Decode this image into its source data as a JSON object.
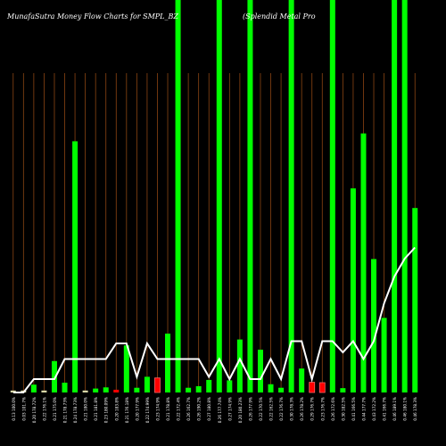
{
  "header": {
    "title_left": "MunafaSutra  Money Flow  Charts for SMPL_BZ",
    "title_right": "(Splendid Metal Pro"
  },
  "colors": {
    "background": "#000000",
    "grid_line": "#8B4513",
    "bar_up": "#00ff00",
    "bar_down": "#ff0000",
    "bar_neutral": "#d8d8a8",
    "line": "#ffffff",
    "label_text": "#ffffff"
  },
  "chart_data": {
    "type": "bar",
    "title": "MunafaSutra  Money Flow  Charts for SMPL_BZ",
    "grid": "vertical",
    "ylim": [
      0,
      100
    ],
    "line_ylim": [
      0,
      100
    ],
    "categories": [
      "0.13 100.0%",
      "0.03 101.7%",
      "0.20 178.72%",
      "0.22 176.1%",
      "0.21 175.0%",
      "0.21 178.73%",
      "0.24 178.73%",
      "0.21 180.0%",
      "0.21 181.8%",
      "0.23 180.09%",
      "0.20 183.8%",
      "0.21 176.18%",
      "0.20 177.9%",
      "0.22 174.99%",
      "0.23 174.9%",
      "0.21 178.8%",
      "0.22 172.4%",
      "0.26 162.7%",
      "0.26 190.2%",
      "0.27 180.8%",
      "0.26 177.74%",
      "0.27 174.9%",
      "0.20 180.23%",
      "0.26 177.9%",
      "0.22 170.5%",
      "0.22 162.5%",
      "0.22 176.7%",
      "0.30 178.3%",
      "0.26 178.2%",
      "0.29 176.7%",
      "0.23 176.7%",
      "0.26 172.6%",
      "0.30 182.5%",
      "0.41 166.5%",
      "0.44 177.7%",
      "0.43 172.2%",
      "0.41 166.7%",
      "0.46 189.1%",
      "0.46 180.1%",
      "0.46 178.3%"
    ],
    "series": [
      {
        "values": [
          0.5,
          0.5,
          2,
          0.5,
          8,
          2.5,
          64,
          0.5,
          1,
          1.3,
          0.7,
          12,
          1.2,
          4,
          3.7,
          15,
          100,
          1.2,
          1.6,
          3.2,
          100,
          3.1,
          13.5,
          100,
          10.9,
          2.1,
          1.2,
          100,
          6.1,
          2.6,
          2.5,
          100,
          1.1,
          52,
          66,
          34,
          19,
          100,
          100,
          47
        ],
        "direction": [
          "neutral",
          "neutral",
          "up",
          "neutral",
          "up",
          "up",
          "up",
          "neutral",
          "up",
          "up",
          "down",
          "up",
          "up",
          "up",
          "down",
          "up",
          "up",
          "up",
          "up",
          "up",
          "up",
          "up",
          "up",
          "up",
          "up",
          "up",
          "up",
          "up",
          "up",
          "down",
          "down",
          "up",
          "up",
          "up",
          "up",
          "up",
          "up",
          "up",
          "up",
          "up"
        ]
      }
    ],
    "line": [
      0,
      0,
      6,
      6,
      6,
      15,
      15,
      15,
      15,
      15,
      22,
      22,
      7,
      22,
      15,
      15,
      15,
      15,
      15,
      7,
      15,
      6,
      15,
      6,
      6,
      15,
      6,
      23,
      23,
      6,
      23,
      23,
      18,
      23,
      15,
      23,
      40,
      52,
      60,
      65
    ],
    "line_note": ""
  }
}
